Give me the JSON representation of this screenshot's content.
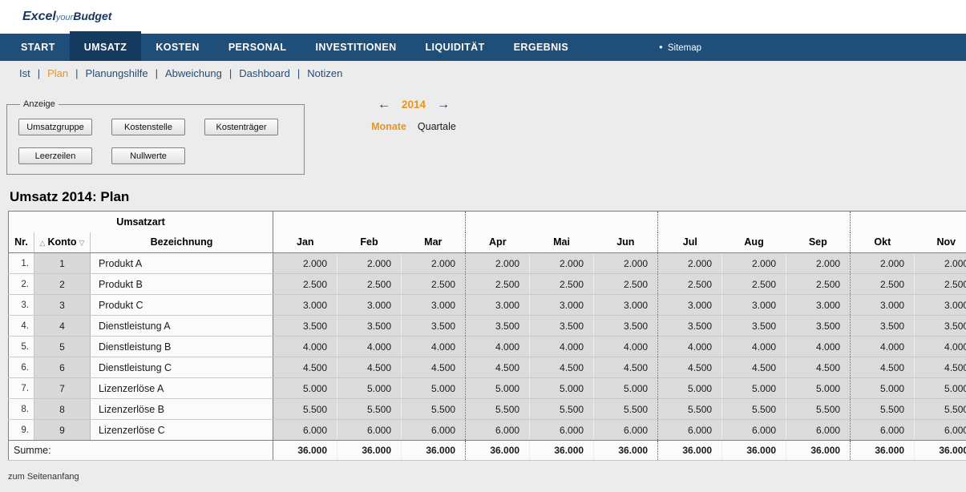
{
  "brand": {
    "excel": "Excel",
    "your": "your",
    "budget": "Budget"
  },
  "colors": {
    "nav_blue": "#1F4E79",
    "nav_active_blue": "#143A5F",
    "accent_orange": "#E8941F",
    "cell_gray": "#DBDBDB"
  },
  "nav": {
    "items": [
      "START",
      "UMSATZ",
      "KOSTEN",
      "PERSONAL",
      "INVESTITIONEN",
      "LIQUIDITÄT",
      "ERGEBNIS"
    ],
    "active": "UMSATZ",
    "sitemap_bullet": "●",
    "sitemap": "Sitemap"
  },
  "subnav": {
    "items": [
      "Ist",
      "Plan",
      "Planungshilfe",
      "Abweichung",
      "Dashboard",
      "Notizen"
    ],
    "active": "Plan",
    "separator": "|"
  },
  "anzeige": {
    "legend": "Anzeige",
    "row1": [
      "Umsatzgruppe",
      "Kostenstelle",
      "Kostenträger"
    ],
    "row2": [
      "Leerzeilen",
      "Nullwerte"
    ]
  },
  "period": {
    "prev_arrow": "←",
    "year": "2014",
    "next_arrow": "→",
    "monate": "Monate",
    "quartale": "Quartale",
    "active_view": "Monate"
  },
  "title": "Umsatz 2014: Plan",
  "table": {
    "header": {
      "nr": "Nr.",
      "konto": "Konto",
      "umsatzart": "Umsatzart",
      "bezeichnung": "Bezeichnung",
      "sort_up": "△",
      "sort_down": "▽"
    },
    "months": [
      "Jan",
      "Feb",
      "Mar",
      "Apr",
      "Mai",
      "Jun",
      "Jul",
      "Aug",
      "Sep",
      "Okt",
      "Nov"
    ],
    "rows": [
      {
        "nr": "1.",
        "konto": "1",
        "bezeichnung": "Produkt A",
        "monthly_value": "2.000"
      },
      {
        "nr": "2.",
        "konto": "2",
        "bezeichnung": "Produkt B",
        "monthly_value": "2.500"
      },
      {
        "nr": "3.",
        "konto": "3",
        "bezeichnung": "Produkt C",
        "monthly_value": "3.000"
      },
      {
        "nr": "4.",
        "konto": "4",
        "bezeichnung": "Dienstleistung A",
        "monthly_value": "3.500"
      },
      {
        "nr": "5.",
        "konto": "5",
        "bezeichnung": "Dienstleistung B",
        "monthly_value": "4.000"
      },
      {
        "nr": "6.",
        "konto": "6",
        "bezeichnung": "Dienstleistung C",
        "monthly_value": "4.500"
      },
      {
        "nr": "7.",
        "konto": "7",
        "bezeichnung": "Lizenzerlöse A",
        "monthly_value": "5.000"
      },
      {
        "nr": "8.",
        "konto": "8",
        "bezeichnung": "Lizenzerlöse B",
        "monthly_value": "5.500"
      },
      {
        "nr": "9.",
        "konto": "9",
        "bezeichnung": "Lizenzerlöse C",
        "monthly_value": "6.000"
      }
    ],
    "summe": {
      "label": "Summe:",
      "monthly_value": "36.000"
    }
  },
  "footer": {
    "back_to_top": "zum Seitenanfang"
  }
}
